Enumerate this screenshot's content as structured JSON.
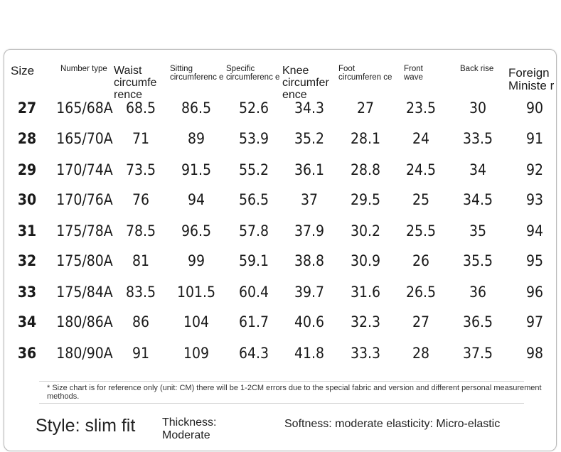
{
  "headers": {
    "size": "Size",
    "number_type": "Number type",
    "waist": "Waist circumfe rence",
    "sitting": "Sitting circumferenc e",
    "specific": "Specific circumferenc e",
    "knee": "Knee circumfer ence",
    "foot": "Foot circumferen ce",
    "front_wave": "Front wave",
    "back_rise": "Back rise",
    "foreign": "Foreign Ministe r"
  },
  "rows": [
    {
      "size": "27",
      "number_type": "165/68A",
      "waist": "68.5",
      "sitting": "86.5",
      "specific": "52.6",
      "knee": "34.3",
      "foot": "27",
      "front_wave": "23.5",
      "back_rise": "30",
      "foreign": "90"
    },
    {
      "size": "28",
      "number_type": "165/70A",
      "waist": "71",
      "sitting": "89",
      "specific": "53.9",
      "knee": "35.2",
      "foot": "28.1",
      "front_wave": "24",
      "back_rise": "33.5",
      "foreign": "91"
    },
    {
      "size": "29",
      "number_type": "170/74A",
      "waist": "73.5",
      "sitting": "91.5",
      "specific": "55.2",
      "knee": "36.1",
      "foot": "28.8",
      "front_wave": "24.5",
      "back_rise": "34",
      "foreign": "92"
    },
    {
      "size": "30",
      "number_type": "170/76A",
      "waist": "76",
      "sitting": "94",
      "specific": "56.5",
      "knee": "37",
      "foot": "29.5",
      "front_wave": "25",
      "back_rise": "34.5",
      "foreign": "93"
    },
    {
      "size": "31",
      "number_type": "175/78A",
      "waist": "78.5",
      "sitting": "96.5",
      "specific": "57.8",
      "knee": "37.9",
      "foot": "30.2",
      "front_wave": "25.5",
      "back_rise": "35",
      "foreign": "94"
    },
    {
      "size": "32",
      "number_type": "175/80A",
      "waist": "81",
      "sitting": "99",
      "specific": "59.1",
      "knee": "38.8",
      "foot": "30.9",
      "front_wave": "26",
      "back_rise": "35.5",
      "foreign": "95"
    },
    {
      "size": "33",
      "number_type": "175/84A",
      "waist": "83.5",
      "sitting": "101.5",
      "specific": "60.4",
      "knee": "39.7",
      "foot": "31.6",
      "front_wave": "26.5",
      "back_rise": "36",
      "foreign": "96"
    },
    {
      "size": "34",
      "number_type": "180/86A",
      "waist": "86",
      "sitting": "104",
      "specific": "61.7",
      "knee": "40.6",
      "foot": "32.3",
      "front_wave": "27",
      "back_rise": "36.5",
      "foreign": "97"
    },
    {
      "size": "36",
      "number_type": "180/90A",
      "waist": "91",
      "sitting": "109",
      "specific": "64.3",
      "knee": "41.8",
      "foot": "33.3",
      "front_wave": "28",
      "back_rise": "37.5",
      "foreign": "98"
    }
  ],
  "note": "* Size chart is for reference only (unit: CM) there will be 1-2CM errors due to the special fabric and version and different personal measurement methods.",
  "footer": {
    "style": "Style: slim fit",
    "thickness": "Thickness: Moderate",
    "softness": "Softness: moderate elasticity: Micro-elastic"
  }
}
